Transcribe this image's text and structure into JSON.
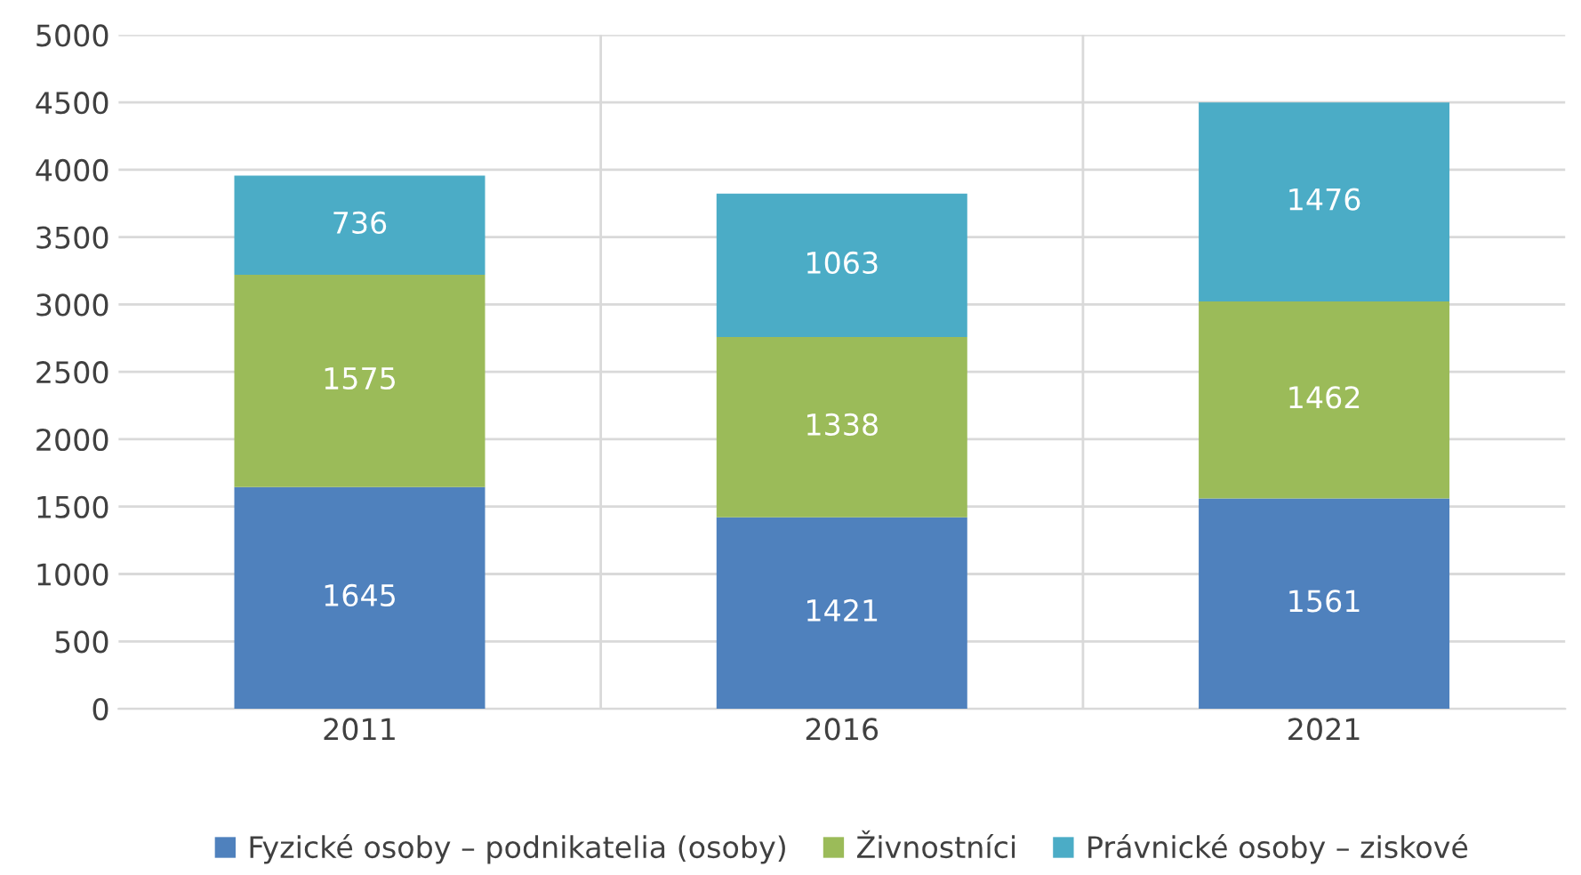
{
  "chart_data": {
    "type": "bar",
    "stacked": true,
    "categories": [
      "2011",
      "2016",
      "2021"
    ],
    "series": [
      {
        "name": "Fyzické osoby – podnikatelia (osoby)",
        "color": "#4f81bd",
        "values": [
          1645,
          1421,
          1561
        ]
      },
      {
        "name": "Živnostníci",
        "color": "#9bbb59",
        "values": [
          1575,
          1338,
          1462
        ]
      },
      {
        "name": "Právnické osoby – ziskové",
        "color": "#4bacc6",
        "values": [
          736,
          1063,
          1476
        ]
      }
    ],
    "ylim": [
      0,
      5000
    ],
    "yticks": [
      0,
      500,
      1000,
      1500,
      2000,
      2500,
      3000,
      3500,
      4000,
      4500,
      5000
    ],
    "grid": true,
    "legend": "bottom",
    "data_labels": true
  }
}
